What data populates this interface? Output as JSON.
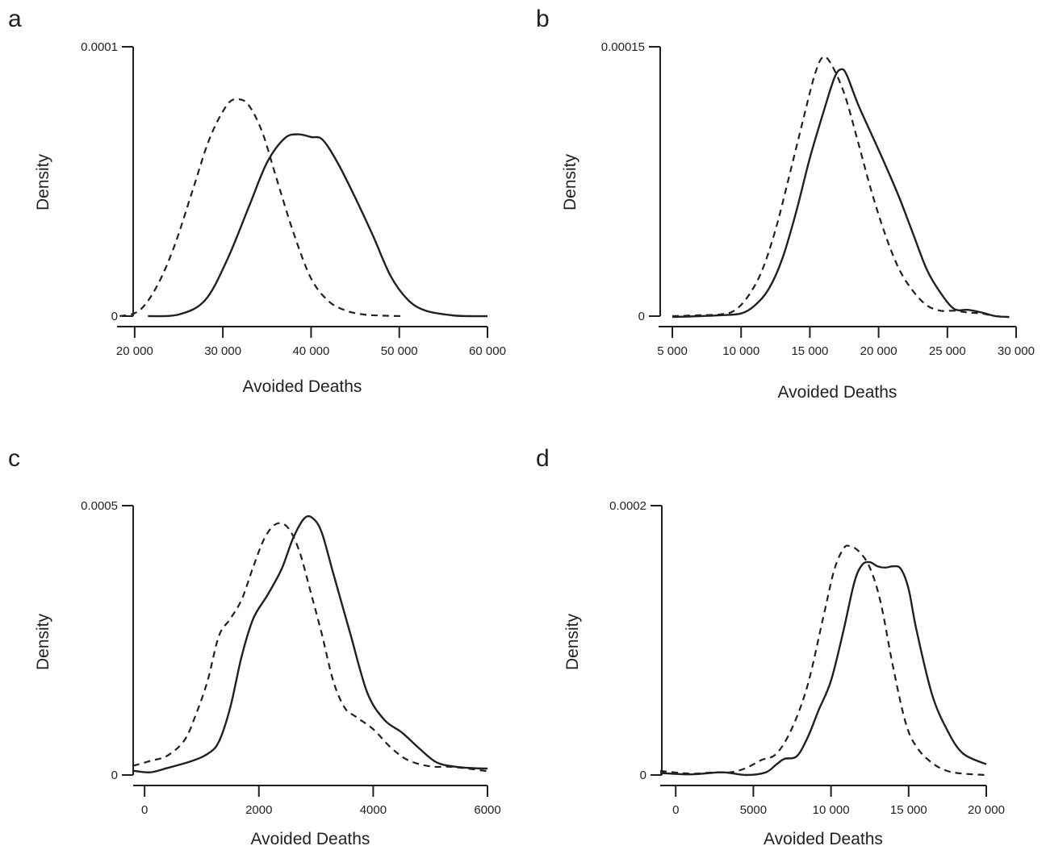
{
  "chart_data": [
    {
      "panel": "a",
      "type": "line",
      "xlabel": "Avoided Deaths",
      "ylabel": "Density",
      "xlim": [
        18000,
        60000
      ],
      "ylim": [
        0,
        0.0001
      ],
      "x_ticks": [
        20000,
        30000,
        40000,
        50000,
        60000
      ],
      "x_tick_labels": [
        "20 000",
        "30 000",
        "40 000",
        "50 000",
        "60 000"
      ],
      "y_ticks": [
        0,
        0.0001
      ],
      "y_tick_labels": [
        "0",
        "0.0001"
      ],
      "grid": false,
      "series": [
        {
          "style": "solid",
          "x": [
            21500,
            25000,
            28000,
            30500,
            33000,
            35000,
            37000,
            38500,
            40000,
            41300,
            43000,
            45000,
            47000,
            49000,
            51000,
            53000,
            56000,
            58000,
            60000
          ],
          "y": [
            0,
            6e-07,
            6e-06,
            2.1e-05,
            4.1e-05,
            5.7e-05,
            6.6e-05,
            6.75e-05,
            6.65e-05,
            6.55e-05,
            5.7e-05,
            4.4e-05,
            3e-05,
            1.5e-05,
            6e-06,
            2e-06,
            3e-07,
            0,
            0
          ]
        },
        {
          "style": "dashed",
          "x": [
            18300,
            20500,
            22500,
            24500,
            26500,
            28500,
            30500,
            31800,
            33000,
            34500,
            36000,
            38000,
            40000,
            42000,
            44000,
            46000,
            48000,
            50500
          ],
          "y": [
            0,
            2e-06,
            1.1e-05,
            2.6e-05,
            4.6e-05,
            6.6e-05,
            7.85e-05,
            8.05e-05,
            7.8e-05,
            6.8e-05,
            5.2e-05,
            3.1e-05,
            1.4e-05,
            5.5e-06,
            2e-06,
            6e-07,
            2e-07,
            0
          ]
        }
      ]
    },
    {
      "panel": "b",
      "type": "line",
      "xlabel": "Avoided Deaths",
      "ylabel": "Density",
      "xlim": [
        4000,
        30000
      ],
      "ylim": [
        0,
        0.00015
      ],
      "x_ticks": [
        5000,
        10000,
        15000,
        20000,
        25000,
        30000
      ],
      "x_tick_labels": [
        "5 000",
        "10 000",
        "15 000",
        "20 000",
        "25 000",
        "30 000"
      ],
      "y_ticks": [
        0,
        0.00015
      ],
      "y_tick_labels": [
        "0",
        "0.00015"
      ],
      "grid": false,
      "series": [
        {
          "style": "solid",
          "x": [
            5000,
            7000,
            8500,
            10000,
            11000,
            12000,
            13000,
            14000,
            15000,
            16000,
            16800,
            17300,
            17700,
            18500,
            19500,
            20500,
            21500,
            22500,
            23500,
            24500,
            25500,
            26500,
            27500,
            28500,
            29500
          ],
          "y": [
            -5e-07,
            0,
            5e-07,
            1.5e-06,
            6e-06,
            1.5e-05,
            3.2e-05,
            5.8e-05,
            8.8e-05,
            0.000114,
            0.000133,
            0.0001375,
            0.000134,
            0.000118,
            0.000101,
            8.4e-05,
            6.6e-05,
            4.6e-05,
            2.6e-05,
            1.3e-05,
            4e-06,
            3.5e-06,
            2e-06,
            0,
            -5e-07
          ]
        },
        {
          "style": "dashed",
          "x": [
            5000,
            7000,
            8500,
            9500,
            10500,
            11500,
            12500,
            13500,
            14500,
            15300,
            15900,
            16500,
            17500,
            18500,
            19500,
            20500,
            21500,
            22500,
            23500,
            24500,
            25500,
            26500,
            27500,
            28500,
            29500
          ],
          "y": [
            0,
            5e-07,
            1e-06,
            3e-06,
            1.1e-05,
            2.5e-05,
            4.8e-05,
            7.8e-05,
            0.000109,
            0.000133,
            0.000144,
            0.000141,
            0.000124,
            9.7e-05,
            6.9e-05,
            4.5e-05,
            2.6e-05,
            1.4e-05,
            6e-06,
            3e-06,
            3e-06,
            2e-06,
            1.5e-06,
            0,
            -5e-07
          ]
        }
      ]
    },
    {
      "panel": "c",
      "type": "line",
      "xlabel": "Avoided Deaths",
      "ylabel": "Density",
      "xlim": [
        -200,
        6000
      ],
      "ylim": [
        0,
        0.0005
      ],
      "x_ticks": [
        0,
        2000,
        4000,
        6000
      ],
      "x_tick_labels": [
        "0",
        "2000",
        "4000",
        "6000"
      ],
      "y_ticks": [
        0,
        0.0005
      ],
      "y_tick_labels": [
        "0",
        "0.0005"
      ],
      "grid": false,
      "series": [
        {
          "style": "solid",
          "x": [
            -200,
            100,
            400,
            800,
            1100,
            1300,
            1500,
            1700,
            1900,
            2150,
            2400,
            2600,
            2800,
            2950,
            3100,
            3300,
            3600,
            3900,
            4200,
            4500,
            4800,
            5100,
            5400,
            5700,
            6000
          ],
          "y": [
            8e-06,
            5e-06,
            1.3e-05,
            2.5e-05,
            3.9e-05,
            6.2e-05,
            0.000126,
            0.000221,
            0.00029,
            0.000334,
            0.000383,
            0.00044,
            0.000477,
            0.000476,
            0.00045,
            0.000375,
            0.000262,
            0.000152,
            0.000102,
            7.9e-05,
            5e-05,
            2.4e-05,
            1.6e-05,
            1.3e-05,
            1.2e-05
          ]
        },
        {
          "style": "dashed",
          "x": [
            -200,
            100,
            400,
            700,
            900,
            1100,
            1300,
            1500,
            1700,
            1900,
            2100,
            2300,
            2500,
            2700,
            2900,
            3100,
            3300,
            3500,
            3700,
            4000,
            4300,
            4600,
            5000,
            5400,
            6000
          ],
          "y": [
            1.7e-05,
            2.6e-05,
            3.6e-05,
            6.5e-05,
            0.000113,
            0.000174,
            0.000258,
            0.00029,
            0.000326,
            0.000386,
            0.00044,
            0.000466,
            0.00046,
            0.000418,
            0.000342,
            0.000262,
            0.000175,
            0.000125,
            0.000108,
            8.5e-05,
            5.2e-05,
            2.8e-05,
            1.6e-05,
            1.5e-05,
            7e-06
          ]
        }
      ]
    },
    {
      "panel": "d",
      "type": "line",
      "xlabel": "Avoided Deaths",
      "ylabel": "Density",
      "xlim": [
        -1000,
        20000
      ],
      "ylim": [
        0,
        0.0002
      ],
      "x_ticks": [
        0,
        5000,
        10000,
        15000,
        20000
      ],
      "x_tick_labels": [
        "0",
        "5000",
        "10 000",
        "15 000",
        "20 000"
      ],
      "y_ticks": [
        0,
        0.0002
      ],
      "y_tick_labels": [
        "0",
        "0.0002"
      ],
      "grid": false,
      "series": [
        {
          "style": "solid",
          "x": [
            -1000,
            1000,
            3000,
            4500,
            5800,
            6500,
            7000,
            7800,
            8500,
            9200,
            10000,
            10800,
            11500,
            12000,
            12500,
            13000,
            13500,
            14000,
            14500,
            15000,
            15500,
            16500,
            17500,
            18500,
            20000
          ],
          "y": [
            1.5e-06,
            5e-07,
            2e-06,
            0,
            2e-06,
            8e-06,
            1.2e-05,
            1.4e-05,
            2.8e-05,
            4.8e-05,
            7e-05,
            0.000107,
            0.000143,
            0.000156,
            0.000158,
            0.000155,
            0.000154,
            0.000155,
            0.000153,
            0.000138,
            0.000108,
            6e-05,
            3.3e-05,
            1.6e-05,
            8e-06
          ]
        },
        {
          "style": "dashed",
          "x": [
            -1000,
            1000,
            2500,
            3500,
            4500,
            5500,
            6500,
            7500,
            8500,
            9500,
            10200,
            10800,
            11200,
            11800,
            12500,
            13200,
            14000,
            14800,
            15500,
            16500,
            17500,
            18500,
            20000
          ],
          "y": [
            3e-06,
            1e-06,
            2e-06,
            2e-06,
            5e-06,
            1.1e-05,
            1.6e-05,
            3.5e-05,
            6.7e-05,
            0.000117,
            0.000152,
            0.000168,
            0.00017,
            0.000166,
            0.000154,
            0.000128,
            8e-05,
            3.9e-05,
            2.1e-05,
            9e-06,
            3e-06,
            1e-06,
            0
          ]
        }
      ]
    }
  ]
}
